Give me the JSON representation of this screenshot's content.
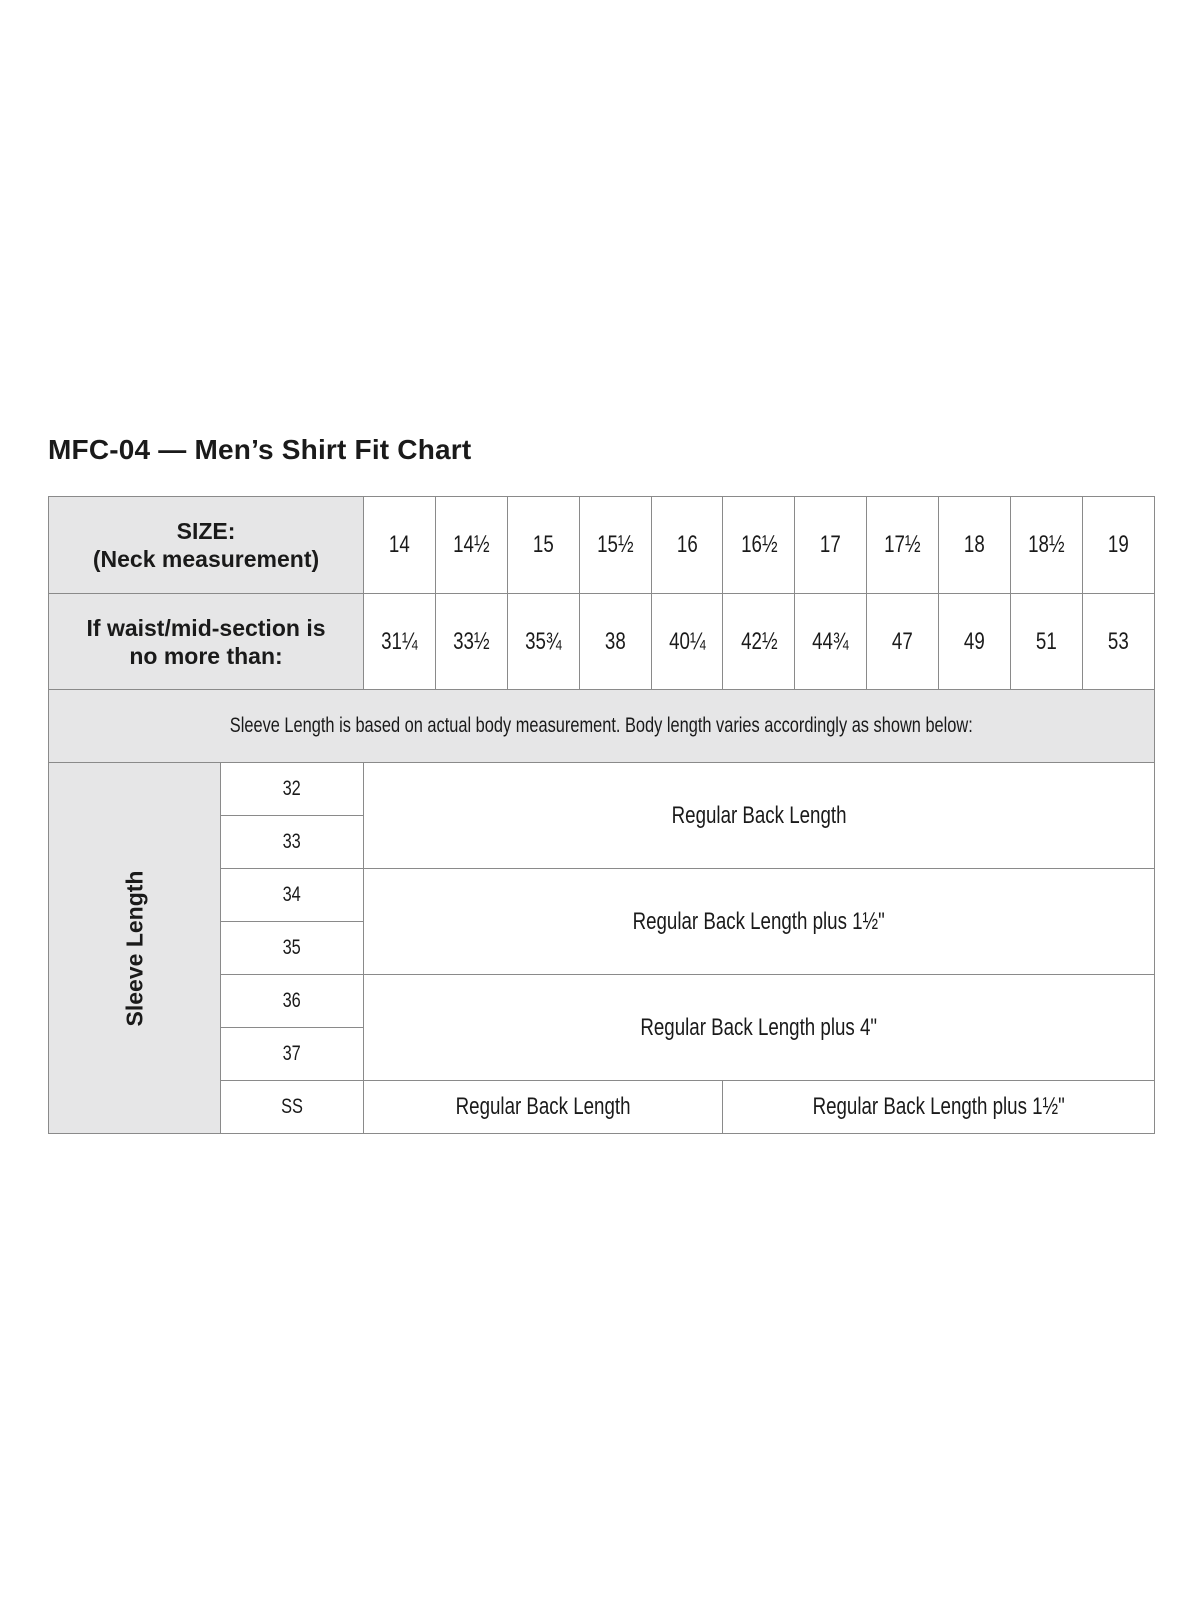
{
  "title": "MFC-04 — Men’s Shirt Fit Chart",
  "size_row": {
    "label_line1": "SIZE:",
    "label_line2": "(Neck measurement)",
    "values": [
      "14",
      "14½",
      "15",
      "15½",
      "16",
      "16½",
      "17",
      "17½",
      "18",
      "18½",
      "19"
    ]
  },
  "waist_row": {
    "label_line1": "If waist/mid-section is",
    "label_line2": "no more than:",
    "values": [
      "31¼",
      "33½",
      "35¾",
      "38",
      "40¼",
      "42½",
      "44¾",
      "47",
      "49",
      "51",
      "53"
    ]
  },
  "note": "Sleeve Length is based on actual body measurement. Body length varies accordingly as shown below:",
  "sleeve": {
    "label": "Sleeve Length",
    "lengths": [
      "32",
      "33",
      "34",
      "35",
      "36",
      "37",
      "SS"
    ],
    "groups": [
      "Regular Back Length",
      "Regular Back Length plus 1½\"",
      "Regular Back Length plus 4\""
    ],
    "ss_left": "Regular Back Length",
    "ss_right": "Regular Back Length plus 1½\""
  },
  "colors": {
    "header_fill": "#e6e6e7",
    "border": "#8a8a8a"
  }
}
